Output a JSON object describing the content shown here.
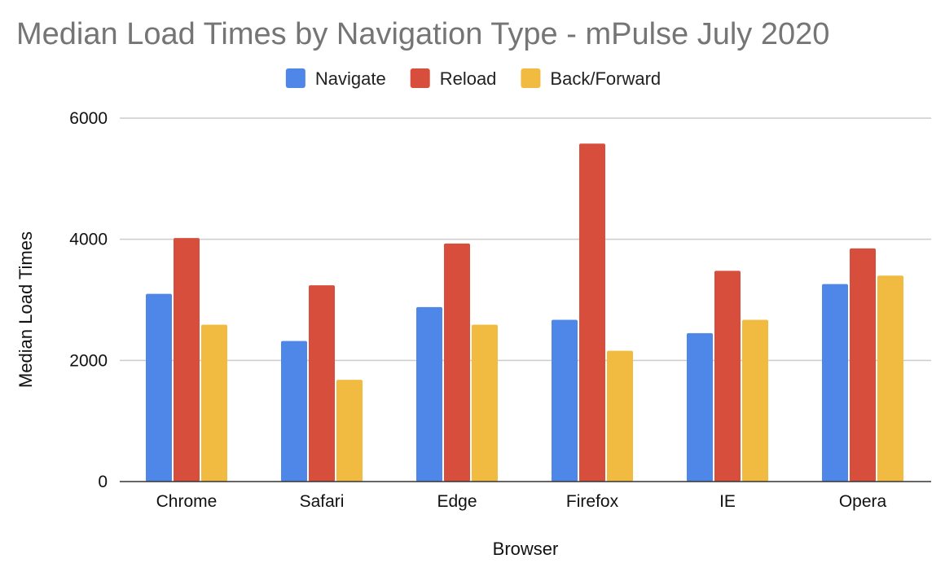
{
  "chart_data": {
    "type": "bar",
    "title": "Median Load Times by Navigation Type - mPulse July 2020",
    "xlabel": "Browser",
    "ylabel": "Median Load Times",
    "categories": [
      "Chrome",
      "Safari",
      "Edge",
      "Firefox",
      "IE",
      "Opera"
    ],
    "series": [
      {
        "name": "Navigate",
        "color": "#4f87e8",
        "values": [
          3100,
          2320,
          2880,
          2670,
          2450,
          3260
        ]
      },
      {
        "name": "Reload",
        "color": "#d74e3c",
        "values": [
          4020,
          3240,
          3930,
          5580,
          3480,
          3850
        ]
      },
      {
        "name": "Back/Forward",
        "color": "#f1bb42",
        "values": [
          2590,
          1680,
          2590,
          2160,
          2670,
          3400
        ]
      }
    ],
    "ylim": [
      0,
      6000
    ],
    "yticks": [
      0,
      2000,
      4000,
      6000
    ],
    "grid": true,
    "legend_position": "top"
  }
}
